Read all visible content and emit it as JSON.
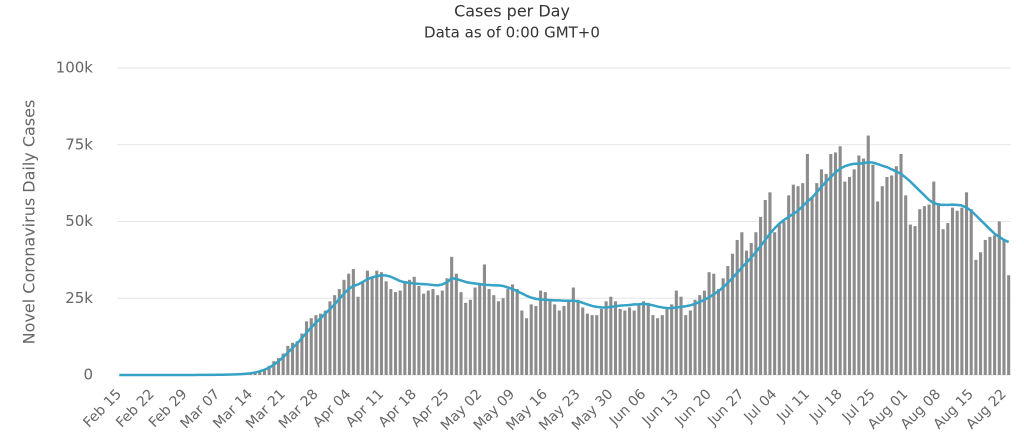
{
  "chart_data": {
    "type": "bar",
    "title": "Cases per Day",
    "subtitle": "Data as of 0:00 GMT+0",
    "ylabel": "Novel Coronavirus Daily Cases",
    "grid": true,
    "ylim": [
      0,
      100000
    ],
    "yticks": [
      0,
      {
        "value": 25000,
        "label": "25k"
      },
      {
        "value": 50000,
        "label": "50k"
      },
      {
        "value": 75000,
        "label": "75k"
      },
      {
        "value": 100000,
        "label": "100k"
      }
    ],
    "categories": [
      "Feb 15",
      null,
      null,
      null,
      null,
      null,
      null,
      "Feb 22",
      null,
      null,
      null,
      null,
      null,
      null,
      "Feb 29",
      null,
      null,
      null,
      null,
      null,
      null,
      "Mar 07",
      null,
      null,
      null,
      null,
      null,
      null,
      "Mar 14",
      null,
      null,
      null,
      null,
      null,
      null,
      "Mar 21",
      null,
      null,
      null,
      null,
      null,
      null,
      "Mar 28",
      null,
      null,
      null,
      null,
      null,
      null,
      "Apr 04",
      null,
      null,
      null,
      null,
      null,
      null,
      "Apr 11",
      null,
      null,
      null,
      null,
      null,
      null,
      "Apr 18",
      null,
      null,
      null,
      null,
      null,
      null,
      "Apr 25",
      null,
      null,
      null,
      null,
      null,
      null,
      "May 02",
      null,
      null,
      null,
      null,
      null,
      null,
      "May 09",
      null,
      null,
      null,
      null,
      null,
      null,
      "May 16",
      null,
      null,
      null,
      null,
      null,
      null,
      "May 23",
      null,
      null,
      null,
      null,
      null,
      null,
      "May 30",
      null,
      null,
      null,
      null,
      null,
      null,
      "Jun 06",
      null,
      null,
      null,
      null,
      null,
      null,
      "Jun 13",
      null,
      null,
      null,
      null,
      null,
      null,
      "Jun 20",
      null,
      null,
      null,
      null,
      null,
      null,
      "Jun 27",
      null,
      null,
      null,
      null,
      null,
      null,
      "Jul 04",
      null,
      null,
      null,
      null,
      null,
      null,
      "Jul 11",
      null,
      null,
      null,
      null,
      null,
      null,
      "Jul 18",
      null,
      null,
      null,
      null,
      null,
      null,
      "Jul 25",
      null,
      null,
      null,
      null,
      null,
      null,
      "Aug 01",
      null,
      null,
      null,
      null,
      null,
      null,
      "Aug 08",
      null,
      null,
      null,
      null,
      null,
      null,
      "Aug 15",
      null,
      null,
      null,
      null,
      null,
      null,
      "Aug 22",
      null
    ],
    "series": [
      {
        "type": "bar",
        "color": "#8c8c8c",
        "values": [
          0,
          0,
          0,
          0,
          0,
          0,
          0,
          0,
          0,
          0,
          0,
          0,
          0,
          0,
          0,
          10,
          20,
          30,
          40,
          60,
          80,
          100,
          120,
          200,
          300,
          400,
          500,
          600,
          700,
          800,
          1500,
          1800,
          3000,
          4500,
          5500,
          7000,
          9500,
          10500,
          11000,
          13500,
          17500,
          18500,
          19500,
          20000,
          21000,
          24000,
          26000,
          28000,
          31000,
          33000,
          34500,
          25500,
          30500,
          34000,
          32000,
          34000,
          33500,
          30500,
          28000,
          27000,
          27500,
          30500,
          31000,
          32000,
          29000,
          26500,
          27500,
          28000,
          26000,
          27500,
          31500,
          38500,
          33000,
          27000,
          23500,
          24500,
          28500,
          30000,
          36000,
          28000,
          26000,
          24000,
          25000,
          28000,
          29500,
          28000,
          21000,
          18500,
          23000,
          22500,
          27500,
          27000,
          24000,
          23000,
          21000,
          22500,
          24000,
          28500,
          24500,
          22000,
          20000,
          19500,
          19500,
          21500,
          24000,
          25500,
          24000,
          21500,
          21000,
          22000,
          21000,
          23000,
          24000,
          23500,
          19500,
          18500,
          19500,
          22000,
          23000,
          27500,
          25500,
          19500,
          21000,
          24500,
          26000,
          27500,
          33500,
          33000,
          28000,
          31500,
          35500,
          39500,
          44000,
          46500,
          40500,
          43000,
          46500,
          51500,
          57000,
          59500,
          46500,
          49000,
          50000,
          58500,
          62000,
          61500,
          62500,
          72000,
          58000,
          62500,
          67000,
          65500,
          72000,
          72500,
          74500,
          63000,
          64500,
          67000,
          71500,
          70500,
          78000,
          68500,
          56500,
          61500,
          64500,
          65000,
          68000,
          72000,
          58500,
          49000,
          48500,
          54000,
          55000,
          55500,
          63000,
          56000,
          47500,
          49500,
          54500,
          53500,
          54500,
          59500,
          54000,
          37500,
          40000,
          44000,
          45000,
          45500,
          50000,
          44000,
          32500
        ]
      },
      {
        "type": "line",
        "color": "#35a2c6",
        "values": [
          0,
          0,
          0,
          0,
          0,
          0,
          0,
          0,
          0,
          0,
          0,
          0,
          0,
          0,
          0,
          10,
          20,
          30,
          40,
          50,
          60,
          80,
          100,
          130,
          170,
          220,
          300,
          400,
          550,
          800,
          1200,
          1700,
          2400,
          3300,
          4500,
          5800,
          7300,
          8800,
          10300,
          12000,
          13800,
          15500,
          17000,
          18500,
          20000,
          21500,
          23000,
          24800,
          26500,
          28000,
          29000,
          29500,
          30300,
          31200,
          31800,
          32200,
          32500,
          32400,
          32000,
          31300,
          30600,
          30200,
          30000,
          29800,
          29700,
          29600,
          29500,
          29300,
          29200,
          29500,
          30200,
          31500,
          31300,
          30800,
          30300,
          30000,
          29800,
          29600,
          29400,
          29300,
          29200,
          29200,
          29000,
          28500,
          28000,
          27300,
          26600,
          25800,
          25200,
          24800,
          24600,
          24500,
          24400,
          24300,
          24300,
          24200,
          24200,
          24200,
          24000,
          23500,
          23000,
          22500,
          22200,
          22000,
          22000,
          22200,
          22400,
          22600,
          22700,
          22800,
          23000,
          23000,
          23200,
          23000,
          22700,
          22300,
          22000,
          21800,
          21800,
          22000,
          22200,
          22400,
          22700,
          23200,
          23800,
          24500,
          25300,
          26300,
          27300,
          28600,
          30000,
          31600,
          33300,
          35000,
          36600,
          38300,
          40000,
          42000,
          44000,
          46000,
          47800,
          49300,
          50500,
          51500,
          52500,
          53500,
          55000,
          56500,
          57800,
          59500,
          61300,
          63000,
          64500,
          66000,
          67200,
          68000,
          68500,
          68800,
          68800,
          69000,
          69300,
          69200,
          68700,
          68200,
          67700,
          67000,
          66300,
          65500,
          64300,
          63000,
          61500,
          60000,
          58500,
          57000,
          56000,
          55500,
          55400,
          55400,
          55500,
          55400,
          55200,
          54500,
          53500,
          52000,
          50500,
          49000,
          47500,
          46000,
          45000,
          44000,
          43300
        ]
      }
    ]
  }
}
